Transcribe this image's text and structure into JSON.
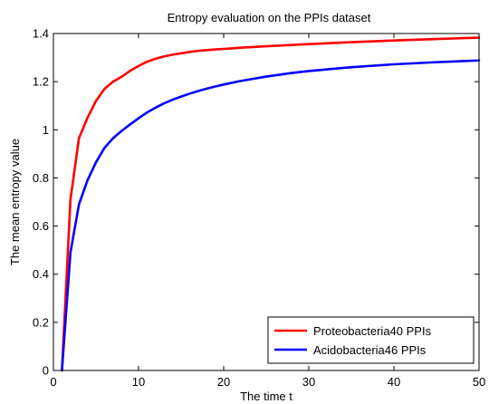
{
  "chart_data": {
    "type": "line",
    "title": "Entropy evaluation on the PPIs dataset",
    "xlabel": "The time t",
    "ylabel": "The mean entropy value",
    "xlim": [
      0,
      50
    ],
    "ylim": [
      0,
      1.4
    ],
    "xticks": [
      0,
      10,
      20,
      30,
      40,
      50
    ],
    "xtick_labels": [
      "0",
      "10",
      "20",
      "30",
      "40",
      "50"
    ],
    "yticks": [
      0,
      0.2,
      0.4,
      0.6,
      0.8,
      1,
      1.2,
      1.4
    ],
    "ytick_labels": [
      "0",
      "0.2",
      "0.4",
      "0.6",
      "0.8",
      "1",
      "1.2",
      "1.4"
    ],
    "grid": false,
    "legend_position": "bottom-right",
    "series": [
      {
        "name": "Proteobacteria40 PPIs",
        "color": "#ff0000",
        "x": [
          1,
          2,
          3,
          4,
          5,
          6,
          7,
          8,
          9,
          10,
          11,
          12,
          13,
          14,
          15,
          16,
          17,
          18,
          19,
          20,
          22,
          25,
          30,
          35,
          40,
          45,
          50
        ],
        "y": [
          0.0,
          0.71,
          0.965,
          1.05,
          1.12,
          1.17,
          1.2,
          1.22,
          1.245,
          1.265,
          1.283,
          1.295,
          1.305,
          1.312,
          1.318,
          1.323,
          1.328,
          1.331,
          1.334,
          1.336,
          1.341,
          1.347,
          1.356,
          1.364,
          1.371,
          1.377,
          1.383
        ]
      },
      {
        "name": "Acidobacteria46 PPIs",
        "color": "#0000ff",
        "x": [
          1,
          2,
          3,
          4,
          5,
          6,
          7,
          8,
          9,
          10,
          11,
          12,
          13,
          14,
          15,
          16,
          17,
          18,
          19,
          20,
          22,
          25,
          28,
          30,
          35,
          40,
          45,
          50
        ],
        "y": [
          0.0,
          0.49,
          0.69,
          0.79,
          0.865,
          0.925,
          0.965,
          0.995,
          1.022,
          1.048,
          1.072,
          1.092,
          1.11,
          1.125,
          1.138,
          1.15,
          1.161,
          1.171,
          1.18,
          1.188,
          1.203,
          1.221,
          1.236,
          1.244,
          1.26,
          1.272,
          1.281,
          1.288
        ]
      }
    ]
  }
}
